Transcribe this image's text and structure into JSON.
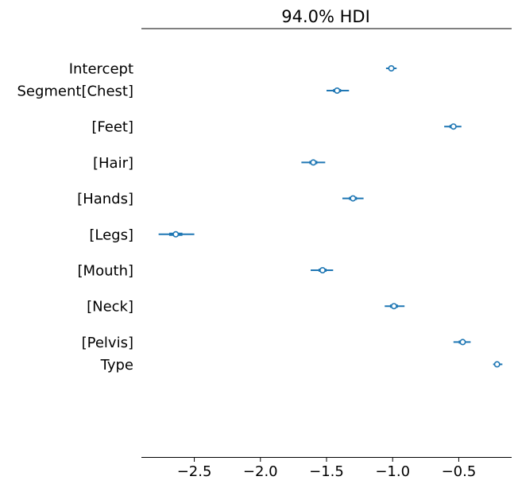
{
  "chart_data": {
    "type": "forest",
    "title": "94.0% HDI",
    "xlabel": "",
    "ylabel": "",
    "xlim": [
      -2.9,
      -0.1
    ],
    "x_ticks": [
      -2.5,
      -2.0,
      -1.5,
      -1.0,
      -0.5
    ],
    "x_tick_labels": [
      "−2.5",
      "−2.0",
      "−1.5",
      "−1.0",
      "−0.5"
    ],
    "grid": false,
    "color": "#1f77b4",
    "groups": [
      {
        "variable": "Intercept",
        "rows": [
          {
            "label": "Intercept",
            "mean": -1.01,
            "hdi": [
              -1.05,
              -0.97
            ],
            "iqr": [
              -1.03,
              -0.99
            ]
          }
        ]
      },
      {
        "variable": "Segment",
        "rows": [
          {
            "label": "Segment[Chest]",
            "mean": -1.42,
            "hdi": [
              -1.5,
              -1.33
            ],
            "iqr": [
              -1.45,
              -1.39
            ]
          },
          {
            "label": "[Feet]",
            "mean": -0.54,
            "hdi": [
              -0.61,
              -0.48
            ],
            "iqr": [
              -0.57,
              -0.52
            ]
          },
          {
            "label": "[Hair]",
            "mean": -1.6,
            "hdi": [
              -1.69,
              -1.51
            ],
            "iqr": [
              -1.63,
              -1.57
            ]
          },
          {
            "label": "[Hands]",
            "mean": -1.3,
            "hdi": [
              -1.38,
              -1.22
            ],
            "iqr": [
              -1.33,
              -1.27
            ]
          },
          {
            "label": "[Legs]",
            "mean": -2.64,
            "hdi": [
              -2.77,
              -2.5
            ],
            "iqr": [
              -2.69,
              -2.59
            ]
          },
          {
            "label": "[Mouth]",
            "mean": -1.53,
            "hdi": [
              -1.62,
              -1.45
            ],
            "iqr": [
              -1.56,
              -1.5
            ]
          },
          {
            "label": "[Neck]",
            "mean": -0.99,
            "hdi": [
              -1.06,
              -0.91
            ],
            "iqr": [
              -1.02,
              -0.96
            ]
          },
          {
            "label": "[Pelvis]",
            "mean": -0.47,
            "hdi": [
              -0.54,
              -0.41
            ],
            "iqr": [
              -0.5,
              -0.45
            ]
          }
        ]
      },
      {
        "variable": "Type",
        "rows": [
          {
            "label": "Type",
            "mean": -0.21,
            "hdi": [
              -0.24,
              -0.17
            ],
            "iqr": [
              -0.23,
              -0.19
            ]
          }
        ]
      }
    ]
  }
}
